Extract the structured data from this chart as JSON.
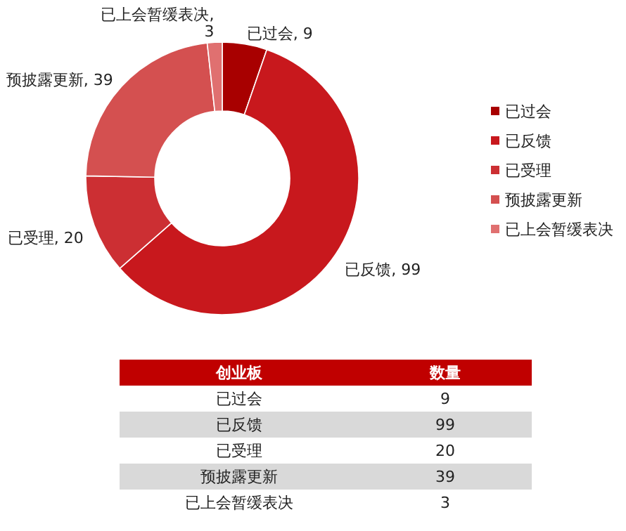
{
  "chart_data": [
    {
      "type": "donut",
      "categories": [
        "已过会",
        "已反馈",
        "已受理",
        "预披露更新",
        "已上会暂缓表决"
      ],
      "values": [
        9,
        99,
        20,
        39,
        3
      ],
      "colors": [
        "#a80000",
        "#c8181d",
        "#cc2f33",
        "#d45050",
        "#e07070"
      ],
      "value_labels": [
        "已过会, 9",
        "已反馈, 99",
        "已受理, 20",
        "预披露更新, 39",
        "已上会暂缓表决, 3"
      ],
      "legend": "right"
    },
    {
      "type": "other",
      "annotations": [
        "创业板",
        "数量"
      ],
      "categories": [
        "已过会",
        "已反馈",
        "已受理",
        "预披露更新",
        "已上会暂缓表决"
      ],
      "values": [
        9,
        99,
        20,
        39,
        3
      ],
      "data_labels": true
    }
  ]
}
